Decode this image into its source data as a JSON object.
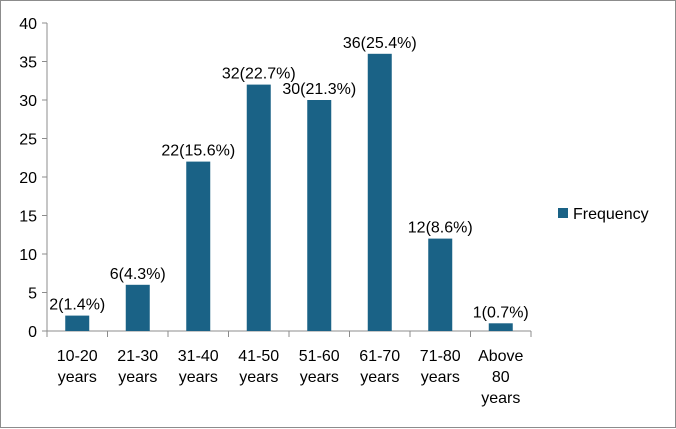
{
  "chart_data": {
    "type": "bar",
    "title": "",
    "xlabel": "",
    "ylabel": "",
    "categories": [
      [
        "10-20",
        "years"
      ],
      [
        "21-30",
        "years"
      ],
      [
        "31-40",
        "years"
      ],
      [
        "41-50",
        "years"
      ],
      [
        "51-60",
        "years"
      ],
      [
        "61-70",
        "years"
      ],
      [
        "71-80",
        "years"
      ],
      [
        "Above",
        "80",
        "years"
      ]
    ],
    "series": [
      {
        "name": "Frequency",
        "color": "#1a6286",
        "values": [
          2,
          6,
          22,
          32,
          30,
          36,
          12,
          1
        ],
        "data_labels": [
          "2(1.4%)",
          "6(4.3%)",
          "22(15.6%)",
          "32(22.7%)",
          "30(21.3%)",
          "36(25.4%)",
          "12(8.6%)",
          "1(0.7%)"
        ]
      }
    ],
    "ylim": [
      0,
      40
    ],
    "yticks": [
      0,
      5,
      10,
      15,
      20,
      25,
      30,
      35,
      40
    ],
    "grid": false,
    "legend": "right"
  }
}
